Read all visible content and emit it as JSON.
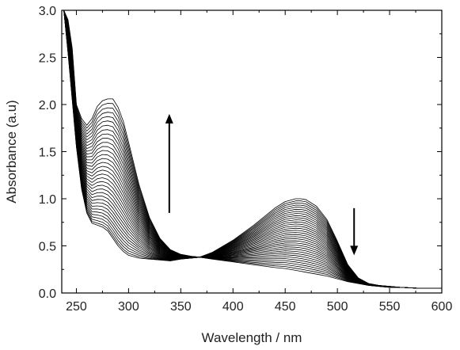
{
  "chart_data": {
    "type": "line",
    "title": "",
    "xlabel": "Wavelength / nm",
    "ylabel": "Absorbance (a.u)",
    "xlim": [
      236,
      600
    ],
    "ylim": [
      0.0,
      3.0
    ],
    "x_ticks": [
      250,
      300,
      350,
      400,
      450,
      500,
      550,
      600
    ],
    "x_tick_labels": [
      "250",
      "300",
      "350",
      "400",
      "450",
      "500",
      "550",
      "600"
    ],
    "y_ticks": [
      0.0,
      0.5,
      1.0,
      1.5,
      2.0,
      2.5,
      3.0
    ],
    "y_tick_labels": [
      "0.0",
      "0.5",
      "1.0",
      "1.5",
      "2.0",
      "2.5",
      "3.0"
    ],
    "grid": false,
    "legend": "none",
    "series_count": 35,
    "isosbestic_point": {
      "x": 368,
      "y": 0.38
    },
    "series_first": {
      "x": [
        238,
        242,
        246,
        250,
        255,
        260,
        265,
        270,
        275,
        280,
        285,
        290,
        295,
        300,
        310,
        320,
        330,
        340,
        350,
        360,
        368,
        380,
        400,
        420,
        440,
        450,
        460,
        465,
        470,
        480,
        490,
        500,
        510,
        520,
        530,
        540,
        550,
        560,
        580,
        600
      ],
      "y": [
        3.0,
        2.55,
        2.05,
        1.55,
        1.1,
        0.85,
        0.74,
        0.72,
        0.7,
        0.66,
        0.58,
        0.5,
        0.44,
        0.4,
        0.37,
        0.36,
        0.35,
        0.34,
        0.36,
        0.37,
        0.38,
        0.43,
        0.56,
        0.72,
        0.9,
        0.97,
        1.0,
        1.0,
        0.99,
        0.92,
        0.78,
        0.55,
        0.3,
        0.16,
        0.1,
        0.08,
        0.07,
        0.06,
        0.05,
        0.05
      ]
    },
    "series_last": {
      "x": [
        238,
        242,
        246,
        250,
        255,
        260,
        265,
        270,
        275,
        280,
        285,
        290,
        295,
        300,
        310,
        320,
        330,
        340,
        350,
        360,
        368,
        380,
        400,
        420,
        440,
        450,
        460,
        465,
        470,
        480,
        490,
        500,
        510,
        520,
        530,
        540,
        550,
        560,
        580,
        600
      ],
      "y": [
        3.0,
        2.9,
        2.6,
        2.0,
        1.85,
        1.78,
        1.85,
        1.98,
        2.04,
        2.06,
        2.06,
        1.97,
        1.82,
        1.6,
        1.15,
        0.8,
        0.58,
        0.46,
        0.41,
        0.39,
        0.38,
        0.36,
        0.33,
        0.3,
        0.27,
        0.26,
        0.24,
        0.23,
        0.22,
        0.2,
        0.18,
        0.15,
        0.12,
        0.1,
        0.08,
        0.07,
        0.06,
        0.06,
        0.05,
        0.05
      ]
    },
    "annotations": [
      {
        "type": "arrow",
        "direction": "up",
        "x": 339,
        "y_start": 0.85,
        "y_end": 1.9
      },
      {
        "type": "arrow",
        "direction": "down",
        "x": 516,
        "y_start": 0.9,
        "y_end": 0.4
      }
    ]
  }
}
